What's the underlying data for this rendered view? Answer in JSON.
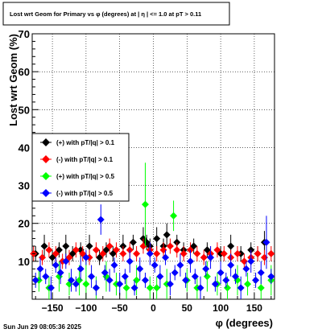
{
  "chart_data": {
    "type": "scatter",
    "title": "Lost wrt Geom for Primary vs φ (degrees) at |  η  | <= 1.0 at pT > 0.11",
    "xlabel": "φ (degrees)",
    "ylabel": "Lost wrt Geom (%)",
    "xlim": [
      -180,
      180
    ],
    "ylim": [
      0,
      70
    ],
    "x_ticks": [
      -150,
      -100,
      -50,
      0,
      50,
      100,
      150
    ],
    "x_tick_labels": [
      "−150",
      "−100",
      "−50",
      "0",
      "50",
      "100",
      "150"
    ],
    "y_ticks": [
      10,
      20,
      30,
      40,
      50,
      60,
      70
    ],
    "grid": true,
    "legend_position": "middle-left",
    "series": [
      {
        "name": "(+) with pT/|q| > 0.1",
        "color": "#000000",
        "x": [
          -175,
          -162,
          -150,
          -140,
          -130,
          -120,
          -108,
          -95,
          -80,
          -70,
          -60,
          -45,
          -30,
          -15,
          -10,
          -5,
          5,
          15,
          20,
          35,
          45,
          60,
          80,
          100,
          115,
          130,
          145,
          155,
          165
        ],
        "y": [
          12,
          14,
          11,
          13,
          14,
          12,
          13,
          14,
          11,
          13,
          12,
          14,
          15,
          16,
          15,
          14,
          16,
          14,
          17,
          15,
          13,
          14,
          13,
          12,
          14,
          12,
          13,
          12,
          15
        ],
        "errors": [
          2,
          3,
          2,
          2,
          3,
          2,
          2,
          3,
          2,
          2,
          2,
          3,
          2,
          3,
          2,
          2,
          3,
          2,
          3,
          2,
          2,
          2,
          2,
          2,
          3,
          2,
          2,
          2,
          3
        ]
      },
      {
        "name": "(-) with pT/|q| > 0.1",
        "color": "#ff0000",
        "x": [
          -178,
          -165,
          -155,
          -145,
          -135,
          -125,
          -115,
          -105,
          -95,
          -85,
          -75,
          -65,
          -55,
          -45,
          -35,
          -25,
          -15,
          -5,
          5,
          15,
          25,
          35,
          45,
          55,
          65,
          75,
          85,
          95,
          105,
          115,
          125,
          135,
          145,
          155,
          165,
          175
        ],
        "y": [
          12,
          11,
          13,
          12,
          10,
          11,
          13,
          12,
          11,
          13,
          12,
          14,
          13,
          12,
          13,
          12,
          14,
          13,
          12,
          13,
          14,
          13,
          12,
          13,
          12,
          11,
          12,
          13,
          12,
          11,
          12,
          10,
          11,
          12,
          11,
          12
        ],
        "errors": [
          2,
          2,
          2,
          2,
          2,
          2,
          2,
          2,
          2,
          2,
          2,
          2,
          2,
          2,
          2,
          2,
          2,
          2,
          2,
          2,
          2,
          2,
          2,
          2,
          2,
          2,
          2,
          2,
          2,
          2,
          2,
          2,
          2,
          2,
          2,
          2
        ]
      },
      {
        "name": "(+) with pT/|q| > 0.5",
        "color": "#00ff00",
        "x": [
          -170,
          -155,
          -140,
          -125,
          -110,
          -100,
          -85,
          -70,
          -55,
          -40,
          -25,
          -12,
          -5,
          5,
          20,
          30,
          50,
          65,
          80,
          95,
          110,
          125,
          140,
          160,
          175
        ],
        "y": [
          5,
          3,
          6,
          4,
          5,
          4,
          3,
          6,
          4,
          3,
          5,
          25,
          3,
          3,
          4,
          22,
          5,
          3,
          6,
          4,
          3,
          5,
          4,
          3,
          5
        ],
        "errors": [
          3,
          3,
          4,
          3,
          4,
          6,
          3,
          4,
          3,
          3,
          4,
          11,
          3,
          3,
          4,
          4,
          3,
          3,
          4,
          3,
          3,
          4,
          3,
          3,
          4
        ]
      },
      {
        "name": "(-) with pT/|q| > 0.5",
        "color": "#0000ff",
        "x": [
          -175,
          -168,
          -160,
          -152,
          -145,
          -138,
          -130,
          -122,
          -115,
          -108,
          -100,
          -92,
          -85,
          -78,
          -72,
          -65,
          -58,
          -50,
          -42,
          -35,
          -28,
          -20,
          -12,
          -5,
          2,
          10,
          18,
          25,
          32,
          40,
          48,
          55,
          62,
          70,
          78,
          85,
          92,
          100,
          108,
          115,
          122,
          130,
          138,
          145,
          152,
          160,
          168,
          175
        ],
        "y": [
          5,
          8,
          6,
          3,
          9,
          7,
          10,
          5,
          4,
          8,
          11,
          6,
          3,
          21,
          7,
          5,
          9,
          4,
          6,
          10,
          3,
          8,
          5,
          12,
          9,
          6,
          11,
          4,
          7,
          9,
          5,
          10,
          6,
          3,
          8,
          11,
          4,
          7,
          5,
          9,
          6,
          3,
          8,
          10,
          5,
          7,
          15,
          6
        ],
        "errors": [
          2,
          3,
          2,
          3,
          2,
          3,
          2,
          3,
          2,
          3,
          2,
          3,
          2,
          4,
          2,
          3,
          2,
          3,
          2,
          3,
          2,
          3,
          2,
          3,
          2,
          3,
          2,
          3,
          2,
          3,
          2,
          3,
          2,
          3,
          2,
          3,
          2,
          3,
          2,
          3,
          2,
          3,
          2,
          3,
          2,
          3,
          7,
          2
        ]
      }
    ]
  },
  "footer": {
    "timestamp": "Sun Jun 29 08:05:36 2025"
  }
}
